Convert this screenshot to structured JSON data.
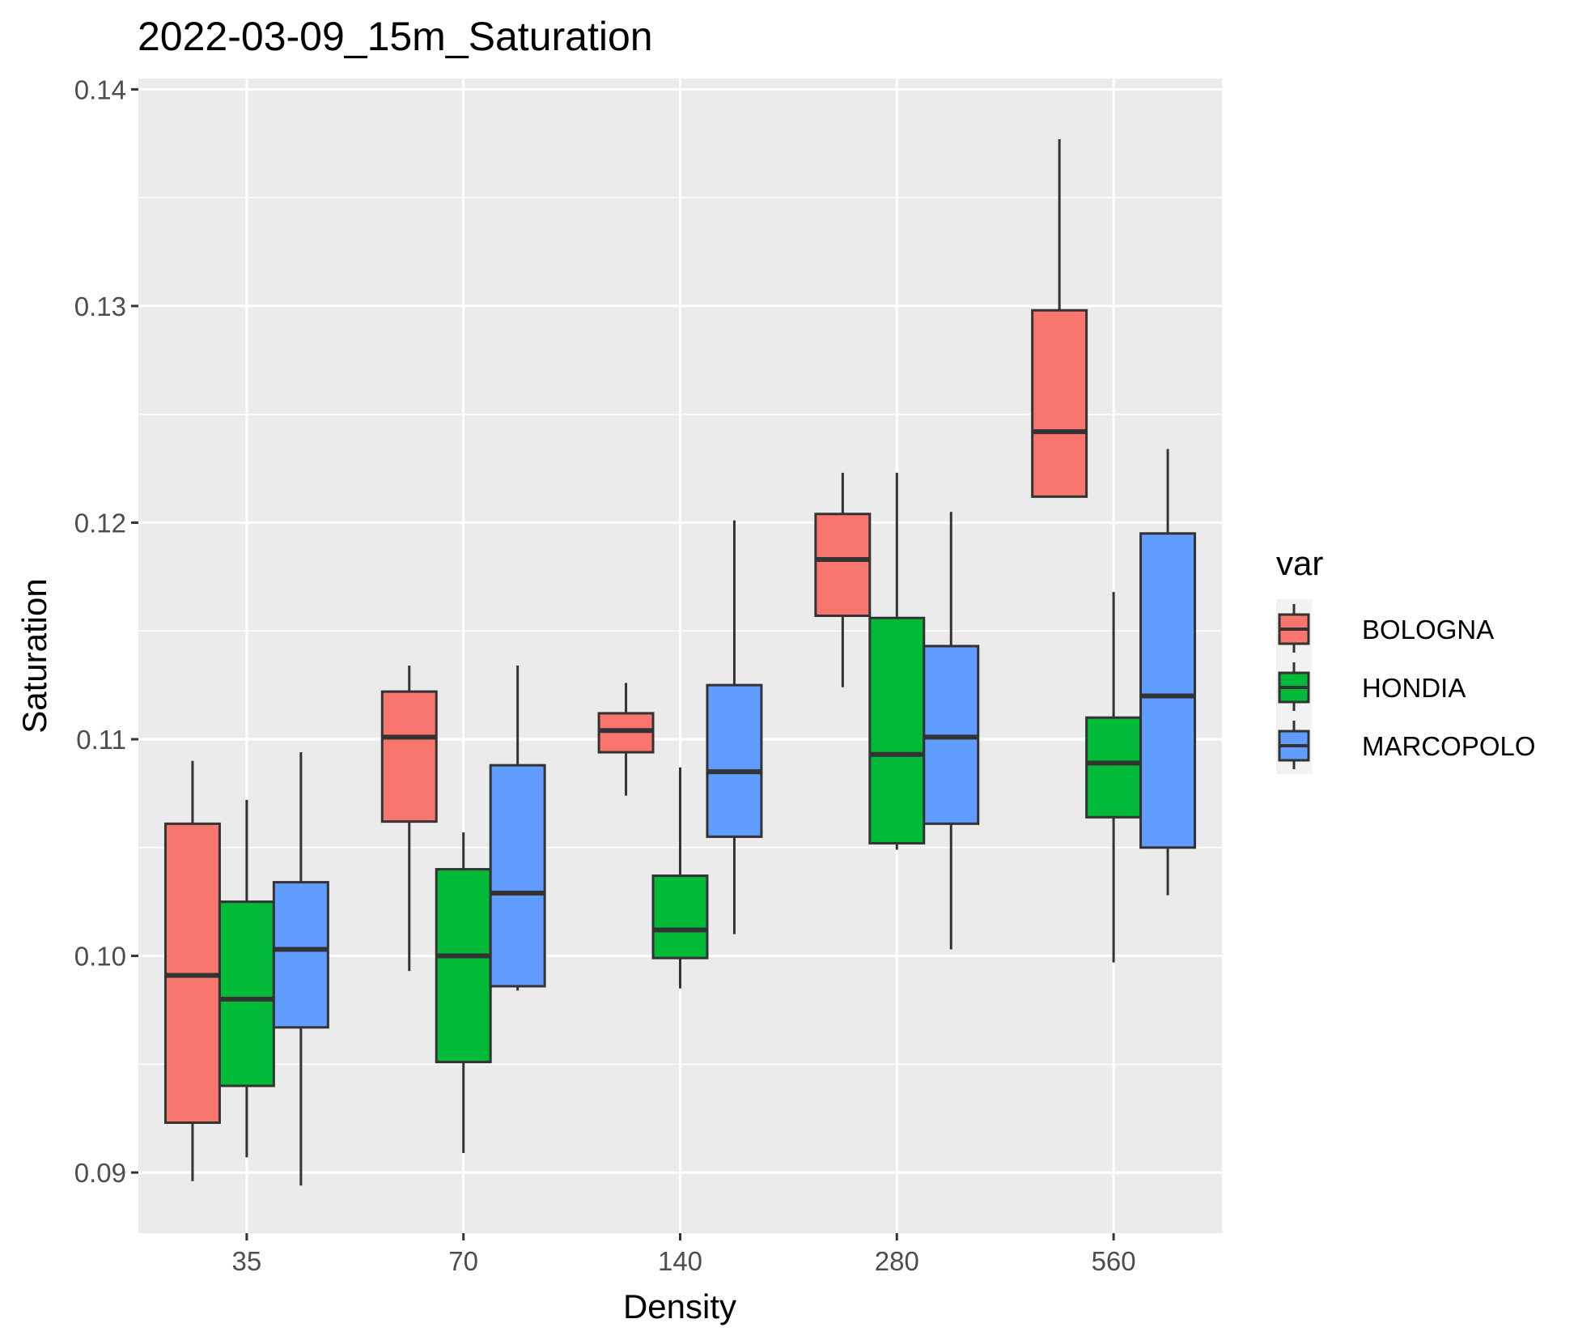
{
  "chart_data": {
    "type": "boxplot",
    "title": "2022-03-09_15m_Saturation",
    "xlabel": "Density",
    "ylabel": "Saturation",
    "categories": [
      "35",
      "70",
      "140",
      "280",
      "560"
    ],
    "ylim": [
      0.0872,
      0.1405
    ],
    "y_ticks": [
      0.09,
      0.1,
      0.11,
      0.12,
      0.13,
      0.14
    ],
    "y_tick_labels": [
      "0.09",
      "0.10",
      "0.11",
      "0.12",
      "0.13",
      "0.14"
    ],
    "grid": true,
    "legend": {
      "title": "var",
      "position": "right"
    },
    "series": [
      {
        "name": "BOLOGNA",
        "color": "#F8766D",
        "boxes": [
          {
            "lower": 0.0896,
            "q1": 0.0923,
            "median": 0.0991,
            "q3": 0.1061,
            "upper": 0.109
          },
          {
            "lower": 0.0993,
            "q1": 0.1062,
            "median": 0.1101,
            "q3": 0.1122,
            "upper": 0.1134
          },
          {
            "lower": 0.1074,
            "q1": 0.1094,
            "median": 0.1104,
            "q3": 0.1112,
            "upper": 0.1126
          },
          {
            "lower": 0.1124,
            "q1": 0.1157,
            "median": 0.1183,
            "q3": 0.1204,
            "upper": 0.1223
          },
          {
            "lower": 0.1212,
            "q1": 0.1212,
            "median": 0.1242,
            "q3": 0.1298,
            "upper": 0.1377
          }
        ]
      },
      {
        "name": "HONDIA",
        "color": "#00BA38",
        "boxes": [
          {
            "lower": 0.0907,
            "q1": 0.094,
            "median": 0.098,
            "q3": 0.1025,
            "upper": 0.1072
          },
          {
            "lower": 0.0909,
            "q1": 0.0951,
            "median": 0.1,
            "q3": 0.104,
            "upper": 0.1057
          },
          {
            "lower": 0.0985,
            "q1": 0.0999,
            "median": 0.1012,
            "q3": 0.1037,
            "upper": 0.1087
          },
          {
            "lower": 0.1049,
            "q1": 0.1052,
            "median": 0.1093,
            "q3": 0.1156,
            "upper": 0.1223
          },
          {
            "lower": 0.0997,
            "q1": 0.1064,
            "median": 0.1089,
            "q3": 0.111,
            "upper": 0.1168
          }
        ]
      },
      {
        "name": "MARCOPOLO",
        "color": "#619CFF",
        "boxes": [
          {
            "lower": 0.0894,
            "q1": 0.0967,
            "median": 0.1003,
            "q3": 0.1034,
            "upper": 0.1094
          },
          {
            "lower": 0.0984,
            "q1": 0.0986,
            "median": 0.1029,
            "q3": 0.1088,
            "upper": 0.1134
          },
          {
            "lower": 0.101,
            "q1": 0.1055,
            "median": 0.1085,
            "q3": 0.1125,
            "upper": 0.1201
          },
          {
            "lower": 0.1003,
            "q1": 0.1061,
            "median": 0.1101,
            "q3": 0.1143,
            "upper": 0.1205
          },
          {
            "lower": 0.1028,
            "q1": 0.105,
            "median": 0.112,
            "q3": 0.1195,
            "upper": 0.1234
          }
        ]
      }
    ]
  }
}
